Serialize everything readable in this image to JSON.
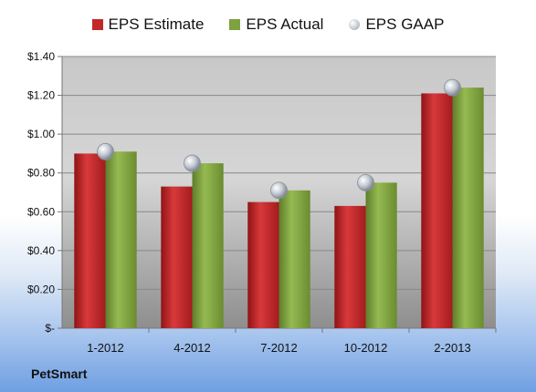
{
  "company": "PetSmart",
  "colors": {
    "estimate": "#c0282a",
    "actual": "#7ea23e",
    "gaap": "#b9c0cc"
  },
  "chart_data": {
    "type": "bar",
    "categories": [
      "1-2012",
      "4-2012",
      "7-2012",
      "10-2012",
      "2-2013"
    ],
    "series": [
      {
        "name": "EPS Estimate",
        "values": [
          0.9,
          0.73,
          0.65,
          0.63,
          1.21
        ]
      },
      {
        "name": "EPS Actual",
        "values": [
          0.91,
          0.85,
          0.71,
          0.75,
          1.24
        ]
      },
      {
        "name": "EPS GAAP",
        "type": "scatter",
        "values": [
          0.91,
          0.85,
          0.71,
          0.75,
          1.24
        ]
      }
    ],
    "ylim": [
      0,
      1.4
    ],
    "yticks": [
      0,
      0.2,
      0.4,
      0.6,
      0.8,
      1.0,
      1.2,
      1.4
    ],
    "ytick_labels": [
      "$-",
      "$0.20",
      "$0.40",
      "$0.60",
      "$0.80",
      "$1.00",
      "$1.20",
      "$1.40"
    ],
    "grid": true,
    "legend_position": "top"
  }
}
